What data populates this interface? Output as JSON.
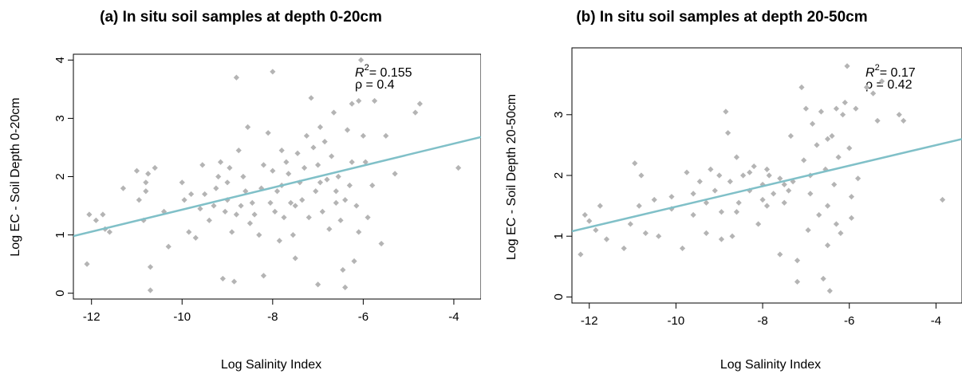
{
  "chart_data": [
    {
      "type": "scatter",
      "title": "(a) In situ soil samples at depth 0-20cm",
      "xlabel": "Log Salinity Index",
      "ylabel": "Log EC - Soil Depth 0-20cm",
      "xlim": [
        -12.4,
        -3.4
      ],
      "ylim": [
        -0.1,
        4.1
      ],
      "xticks": [
        -12,
        -10,
        -8,
        -6,
        -4
      ],
      "yticks": [
        0,
        1,
        2,
        3,
        4
      ],
      "annotation": {
        "r2_label": "R",
        "r2_sup": "2",
        "r2_value": "= 0.155",
        "rho": "ρ = 0.4"
      },
      "fit_line": {
        "x": [
          -12.4,
          -3.4
        ],
        "y": [
          0.98,
          2.68
        ],
        "color": "#80c0c8"
      },
      "point_color": "#b4b4b4",
      "points": [
        [
          -12.1,
          0.5
        ],
        [
          -12.05,
          1.35
        ],
        [
          -11.9,
          1.25
        ],
        [
          -11.75,
          1.35
        ],
        [
          -11.7,
          1.1
        ],
        [
          -11.6,
          1.05
        ],
        [
          -11.0,
          2.1
        ],
        [
          -10.95,
          1.6
        ],
        [
          -10.85,
          1.25
        ],
        [
          -10.8,
          1.9
        ],
        [
          -10.8,
          1.75
        ],
        [
          -10.75,
          2.05
        ],
        [
          -10.7,
          0.45
        ],
        [
          -10.6,
          2.15
        ],
        [
          -10.4,
          1.4
        ],
        [
          -10.3,
          0.8
        ],
        [
          -10.0,
          1.9
        ],
        [
          -9.85,
          1.05
        ],
        [
          -9.8,
          1.7
        ],
        [
          -9.7,
          0.95
        ],
        [
          -9.6,
          1.45
        ],
        [
          -9.55,
          2.2
        ],
        [
          -9.5,
          1.7
        ],
        [
          -9.4,
          1.25
        ],
        [
          -9.3,
          1.5
        ],
        [
          -9.25,
          1.8
        ],
        [
          -9.2,
          2.0
        ],
        [
          -9.15,
          2.25
        ],
        [
          -9.05,
          1.4
        ],
        [
          -9.0,
          1.9
        ],
        [
          -8.95,
          2.15
        ],
        [
          -8.9,
          1.05
        ],
        [
          -8.85,
          0.2
        ],
        [
          -8.8,
          3.7
        ],
        [
          -8.8,
          1.35
        ],
        [
          -8.75,
          2.45
        ],
        [
          -8.7,
          1.5
        ],
        [
          -8.65,
          2.0
        ],
        [
          -8.6,
          1.75
        ],
        [
          -8.55,
          2.85
        ],
        [
          -8.5,
          1.2
        ],
        [
          -8.45,
          1.55
        ],
        [
          -8.4,
          1.35
        ],
        [
          -8.3,
          1.0
        ],
        [
          -8.25,
          1.8
        ],
        [
          -8.2,
          2.2
        ],
        [
          -8.1,
          2.75
        ],
        [
          -8.05,
          1.55
        ],
        [
          -8.0,
          3.8
        ],
        [
          -7.95,
          1.4
        ],
        [
          -7.9,
          1.75
        ],
        [
          -7.85,
          0.9
        ],
        [
          -7.8,
          1.85
        ],
        [
          -7.75,
          1.3
        ],
        [
          -7.7,
          2.25
        ],
        [
          -7.65,
          2.05
        ],
        [
          -7.6,
          1.55
        ],
        [
          -7.55,
          1.0
        ],
        [
          -7.5,
          1.5
        ],
        [
          -7.45,
          2.4
        ],
        [
          -7.4,
          1.9
        ],
        [
          -7.35,
          1.6
        ],
        [
          -7.3,
          2.15
        ],
        [
          -7.25,
          2.7
        ],
        [
          -7.2,
          1.3
        ],
        [
          -7.15,
          3.35
        ],
        [
          -7.1,
          2.5
        ],
        [
          -7.05,
          1.75
        ],
        [
          -7.0,
          2.2
        ],
        [
          -6.95,
          2.85
        ],
        [
          -6.9,
          1.4
        ],
        [
          -6.85,
          2.6
        ],
        [
          -6.8,
          1.95
        ],
        [
          -6.75,
          1.1
        ],
        [
          -6.7,
          2.35
        ],
        [
          -6.65,
          3.1
        ],
        [
          -6.6,
          1.55
        ],
        [
          -6.55,
          2.0
        ],
        [
          -6.5,
          1.25
        ],
        [
          -6.45,
          0.4
        ],
        [
          -6.4,
          1.6
        ],
        [
          -6.35,
          2.8
        ],
        [
          -6.3,
          1.85
        ],
        [
          -6.25,
          2.25
        ],
        [
          -6.2,
          0.55
        ],
        [
          -6.15,
          1.5
        ],
        [
          -6.1,
          3.3
        ],
        [
          -6.05,
          4.0
        ],
        [
          -6.0,
          2.7
        ],
        [
          -5.95,
          2.25
        ],
        [
          -5.9,
          1.3
        ],
        [
          -5.8,
          1.85
        ],
        [
          -5.75,
          3.3
        ],
        [
          -5.6,
          0.85
        ],
        [
          -5.5,
          2.7
        ],
        [
          -5.3,
          2.05
        ],
        [
          -4.85,
          3.1
        ],
        [
          -4.75,
          3.25
        ],
        [
          -3.9,
          2.15
        ],
        [
          -6.4,
          0.1
        ],
        [
          -6.25,
          3.25
        ],
        [
          -6.1,
          1.05
        ],
        [
          -7.0,
          0.15
        ],
        [
          -7.5,
          0.6
        ],
        [
          -9.1,
          0.25
        ],
        [
          -8.2,
          0.3
        ],
        [
          -10.7,
          0.05
        ],
        [
          -11.3,
          1.8
        ],
        [
          -9.95,
          1.6
        ],
        [
          -9.0,
          1.6
        ],
        [
          -8.0,
          2.1
        ],
        [
          -7.8,
          2.45
        ],
        [
          -6.95,
          1.9
        ],
        [
          -6.6,
          1.75
        ]
      ]
    },
    {
      "type": "scatter",
      "title": "(b) In situ soil samples at depth 20-50cm",
      "xlabel": "Log Salinity Index",
      "ylabel": "Log EC - Soil Depth 20-50cm",
      "xlim": [
        -12.4,
        -3.4
      ],
      "ylim": [
        -0.1,
        4.1
      ],
      "xticks": [
        -12,
        -10,
        -8,
        -6,
        -4
      ],
      "yticks": [
        0,
        1,
        2,
        3
      ],
      "annotation": {
        "r2_label": "R",
        "r2_sup": "2",
        "r2_value": "= 0.17",
        "rho": "ρ = 0.42"
      },
      "fit_line": {
        "x": [
          -12.4,
          -3.4
        ],
        "y": [
          1.08,
          2.6
        ],
        "color": "#80c0c8"
      },
      "point_color": "#b4b4b4",
      "points": [
        [
          -12.2,
          0.7
        ],
        [
          -12.1,
          1.35
        ],
        [
          -12.0,
          1.25
        ],
        [
          -11.85,
          1.1
        ],
        [
          -11.75,
          1.5
        ],
        [
          -11.6,
          0.95
        ],
        [
          -11.2,
          0.8
        ],
        [
          -11.05,
          1.2
        ],
        [
          -10.95,
          2.2
        ],
        [
          -10.85,
          1.5
        ],
        [
          -10.8,
          2.0
        ],
        [
          -10.7,
          1.05
        ],
        [
          -10.5,
          1.6
        ],
        [
          -10.4,
          1.0
        ],
        [
          -10.1,
          1.65
        ],
        [
          -9.85,
          0.8
        ],
        [
          -9.75,
          2.05
        ],
        [
          -9.6,
          1.35
        ],
        [
          -9.45,
          1.9
        ],
        [
          -9.3,
          1.55
        ],
        [
          -9.2,
          2.1
        ],
        [
          -9.1,
          1.75
        ],
        [
          -9.0,
          2.0
        ],
        [
          -8.95,
          1.4
        ],
        [
          -8.85,
          3.05
        ],
        [
          -8.8,
          2.7
        ],
        [
          -8.75,
          1.9
        ],
        [
          -8.7,
          1.0
        ],
        [
          -8.6,
          2.3
        ],
        [
          -8.55,
          1.55
        ],
        [
          -8.45,
          2.0
        ],
        [
          -8.3,
          1.75
        ],
        [
          -8.2,
          2.15
        ],
        [
          -8.1,
          1.2
        ],
        [
          -8.0,
          1.85
        ],
        [
          -7.9,
          1.5
        ],
        [
          -7.85,
          2.0
        ],
        [
          -7.75,
          1.7
        ],
        [
          -7.6,
          1.95
        ],
        [
          -7.5,
          1.55
        ],
        [
          -7.4,
          1.75
        ],
        [
          -7.35,
          2.65
        ],
        [
          -7.3,
          1.9
        ],
        [
          -7.2,
          0.6
        ],
        [
          -7.1,
          3.45
        ],
        [
          -7.05,
          2.25
        ],
        [
          -6.95,
          1.1
        ],
        [
          -6.9,
          1.7
        ],
        [
          -6.85,
          2.85
        ],
        [
          -6.75,
          2.5
        ],
        [
          -6.7,
          1.35
        ],
        [
          -6.65,
          3.05
        ],
        [
          -6.55,
          2.1
        ],
        [
          -6.5,
          1.5
        ],
        [
          -6.45,
          0.1
        ],
        [
          -6.4,
          2.65
        ],
        [
          -6.35,
          1.85
        ],
        [
          -6.3,
          1.2
        ],
        [
          -6.25,
          2.3
        ],
        [
          -6.15,
          3.0
        ],
        [
          -6.1,
          3.2
        ],
        [
          -6.05,
          3.8
        ],
        [
          -6.0,
          2.45
        ],
        [
          -5.95,
          1.65
        ],
        [
          -5.85,
          3.1
        ],
        [
          -5.8,
          1.95
        ],
        [
          -5.6,
          3.45
        ],
        [
          -5.45,
          3.35
        ],
        [
          -5.35,
          2.9
        ],
        [
          -5.25,
          3.55
        ],
        [
          -4.85,
          3.0
        ],
        [
          -4.75,
          2.9
        ],
        [
          -3.85,
          1.6
        ],
        [
          -6.6,
          0.3
        ],
        [
          -6.5,
          0.85
        ],
        [
          -6.2,
          1.05
        ],
        [
          -7.2,
          0.25
        ],
        [
          -7.6,
          0.7
        ],
        [
          -8.0,
          1.6
        ],
        [
          -8.95,
          0.95
        ],
        [
          -9.3,
          1.05
        ],
        [
          -10.1,
          1.45
        ],
        [
          -9.6,
          1.7
        ],
        [
          -8.3,
          2.05
        ],
        [
          -6.9,
          2.0
        ],
        [
          -6.5,
          2.6
        ],
        [
          -7.0,
          3.1
        ],
        [
          -6.3,
          3.1
        ],
        [
          -5.95,
          1.3
        ],
        [
          -8.6,
          1.4
        ],
        [
          -7.9,
          2.1
        ],
        [
          -7.5,
          1.85
        ]
      ]
    }
  ]
}
